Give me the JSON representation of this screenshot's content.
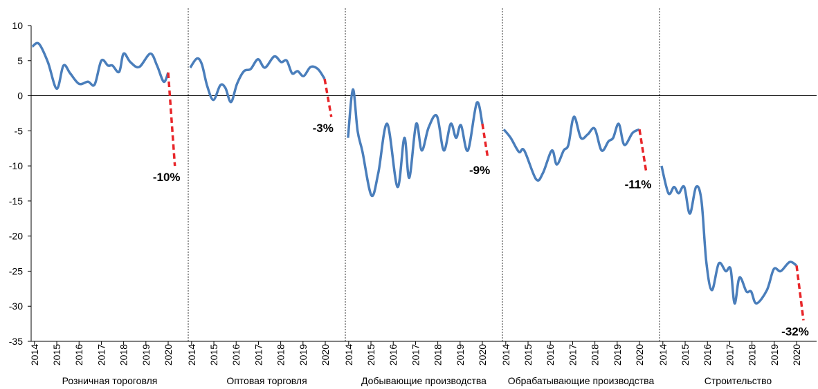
{
  "chart_data": {
    "type": "line",
    "ylim": [
      -35,
      10
    ],
    "yticks": [
      -35,
      -30,
      -25,
      -20,
      -15,
      -10,
      -5,
      0,
      5,
      10
    ],
    "xlim": [
      2013.85,
      2020.9
    ],
    "xticks": [
      2014,
      2015,
      2016,
      2017,
      2018,
      2019,
      2020
    ],
    "color": "#4a7ebb",
    "forecast_color": "#e8262a",
    "panels": [
      {
        "xlabel": "Розничная тороговля",
        "x": [
          2013.9,
          2014.2,
          2014.6,
          2015.0,
          2015.3,
          2015.6,
          2016.0,
          2016.4,
          2016.7,
          2017.0,
          2017.3,
          2017.5,
          2017.8,
          2018.0,
          2018.3,
          2018.7,
          2019.2,
          2019.5,
          2019.8,
          2020.0
        ],
        "values": [
          7.0,
          7.4,
          4.8,
          1.0,
          4.3,
          3.2,
          1.7,
          2.0,
          1.6,
          5.0,
          4.3,
          4.3,
          3.4,
          6.0,
          4.8,
          4.1,
          6.0,
          4.3,
          2.0,
          3.3
        ],
        "forecast": {
          "x": [
            2020.0,
            2020.3
          ],
          "values": [
            3.3,
            -10
          ],
          "label": "-10%"
        }
      },
      {
        "xlabel": "Оптовая торговля",
        "x": [
          2013.94,
          2014.24,
          2014.46,
          2014.7,
          2014.98,
          2015.29,
          2015.52,
          2015.77,
          2016.04,
          2016.35,
          2016.65,
          2016.98,
          2017.29,
          2017.71,
          2018.02,
          2018.27,
          2018.51,
          2018.76,
          2019.03,
          2019.34,
          2019.67,
          2019.97
        ],
        "values": [
          4.0,
          5.3,
          4.5,
          1.4,
          -0.6,
          1.5,
          1.1,
          -0.9,
          1.7,
          3.5,
          3.8,
          5.2,
          4.0,
          5.6,
          4.8,
          5.0,
          3.2,
          3.5,
          2.8,
          4.1,
          3.8,
          2.4
        ],
        "forecast": {
          "x": [
            2019.97,
            2020.27
          ],
          "values": [
            2.4,
            -3
          ],
          "label": "-3%"
        }
      },
      {
        "xlabel": "Добывающие производства",
        "x": [
          2013.97,
          2014.19,
          2014.4,
          2014.62,
          2015.02,
          2015.33,
          2015.73,
          2016.19,
          2016.5,
          2016.72,
          2017.03,
          2017.28,
          2017.59,
          2017.96,
          2018.27,
          2018.58,
          2018.82,
          2019.04,
          2019.35,
          2019.75,
          2020.0
        ],
        "values": [
          -6,
          0.9,
          -5,
          -8,
          -14.2,
          -11,
          -4,
          -13,
          -6,
          -11.7,
          -4,
          -7.8,
          -4.5,
          -2.9,
          -7.8,
          -4,
          -6,
          -4.2,
          -7.8,
          -1,
          -4
        ],
        "forecast": {
          "x": [
            2020.0,
            2020.25
          ],
          "values": [
            -4,
            -9
          ],
          "label": "-9%"
        }
      },
      {
        "xlabel": "Обрабатывающие производства",
        "x": [
          2013.91,
          2014.22,
          2014.59,
          2014.83,
          2015.36,
          2015.67,
          2016.07,
          2016.29,
          2016.6,
          2016.81,
          2017.06,
          2017.37,
          2017.68,
          2017.99,
          2018.3,
          2018.61,
          2018.82,
          2019.07,
          2019.32,
          2019.69,
          2020.0
        ],
        "values": [
          -4.8,
          -6,
          -8,
          -7.8,
          -11.9,
          -11,
          -7.8,
          -9.8,
          -7.8,
          -7,
          -3,
          -6,
          -5.5,
          -4.7,
          -7.8,
          -6.5,
          -6,
          -4,
          -7,
          -5.3,
          -4.8
        ],
        "forecast": {
          "x": [
            2020.0,
            2020.31
          ],
          "values": [
            -4.8,
            -11
          ],
          "label": "-11%"
        }
      },
      {
        "xlabel": "Строительство",
        "x": [
          2013.94,
          2014.25,
          2014.5,
          2014.71,
          2014.96,
          2015.21,
          2015.49,
          2015.73,
          2015.95,
          2016.2,
          2016.51,
          2016.82,
          2017.04,
          2017.22,
          2017.44,
          2017.75,
          2017.96,
          2018.2,
          2018.67,
          2018.98,
          2019.29,
          2019.69,
          2020.0
        ],
        "values": [
          -10,
          -13.9,
          -13,
          -13.9,
          -13,
          -16.8,
          -13,
          -14.9,
          -23.7,
          -27.7,
          -23.9,
          -25,
          -24.7,
          -29.6,
          -25.9,
          -27.9,
          -27.9,
          -29.6,
          -27.7,
          -24.7,
          -25,
          -23.7,
          -24.2
        ],
        "forecast": {
          "x": [
            2020.0,
            2020.31
          ],
          "values": [
            -24.2,
            -32
          ],
          "label": "-32%"
        }
      }
    ]
  }
}
